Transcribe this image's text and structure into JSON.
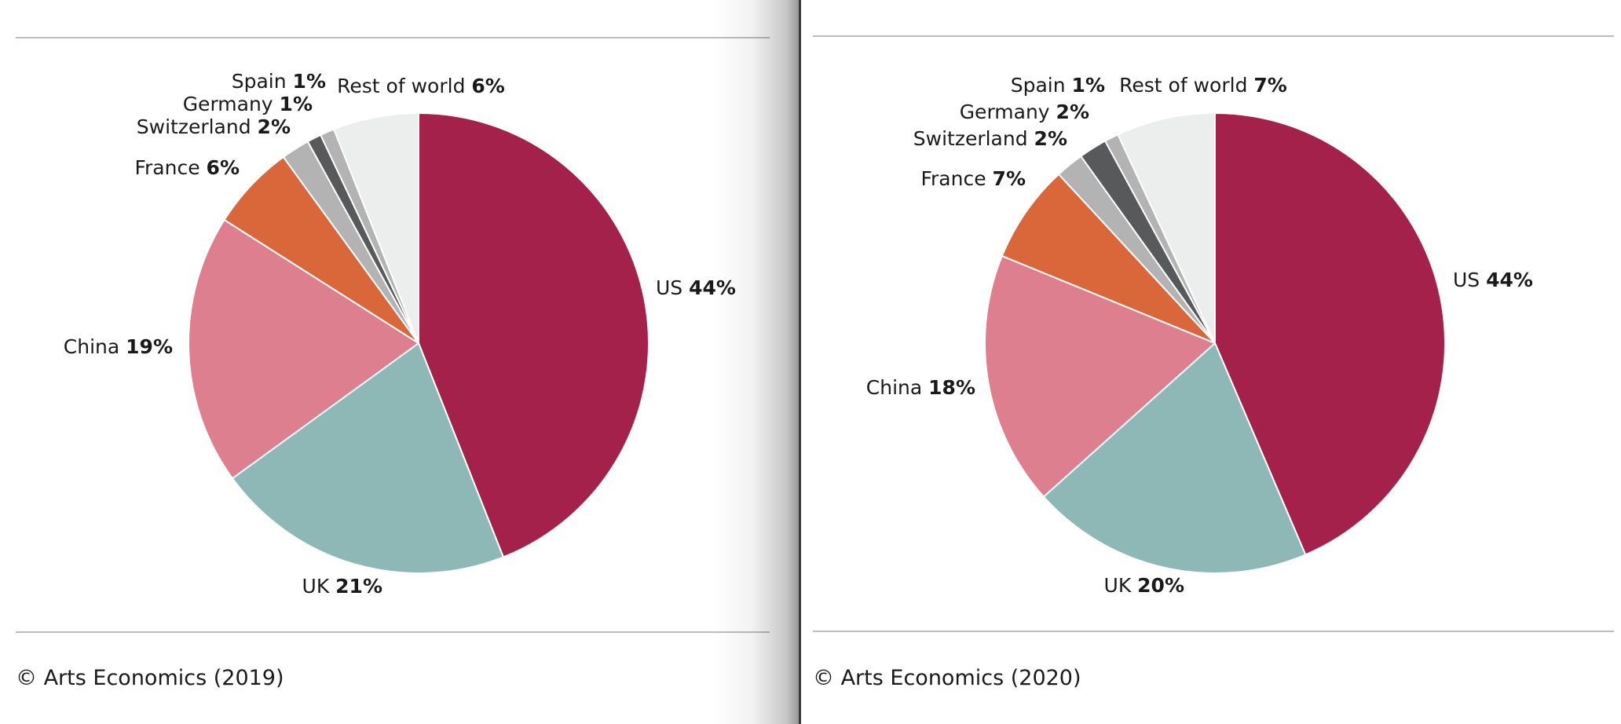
{
  "chart_data": [
    {
      "type": "pie",
      "categories": [
        "US",
        "UK",
        "China",
        "France",
        "Switzerland",
        "Germany",
        "Spain",
        "Rest of world"
      ],
      "values": [
        44,
        21,
        19,
        6,
        2,
        1,
        1,
        6
      ],
      "value_labels": [
        "44%",
        "21%",
        "19%",
        "6%",
        "2%",
        "1%",
        "1%",
        "6%"
      ],
      "colors": [
        "#a3214b",
        "#8db8b5",
        "#de7f8f",
        "#d9673a",
        "#b3b3b3",
        "#58595b",
        "#b3b3b3",
        "#eceded"
      ],
      "start": "12 o'clock, clockwise"
    },
    {
      "type": "pie",
      "categories": [
        "US",
        "UK",
        "China",
        "France",
        "Switzerland",
        "Germany",
        "Spain",
        "Rest of world"
      ],
      "values": [
        44,
        20,
        18,
        7,
        2,
        2,
        1,
        7
      ],
      "value_labels": [
        "44%",
        "20%",
        "18%",
        "7%",
        "2%",
        "2%",
        "1%",
        "7%"
      ],
      "colors": [
        "#a3214b",
        "#8db8b5",
        "#de7f8f",
        "#d9673a",
        "#b3b3b3",
        "#58595b",
        "#b3b3b3",
        "#eceded"
      ],
      "start": "12 o'clock, clockwise"
    }
  ],
  "credits": {
    "left": "© Arts Economics (2019)",
    "right": "© Arts Economics (2020)"
  }
}
